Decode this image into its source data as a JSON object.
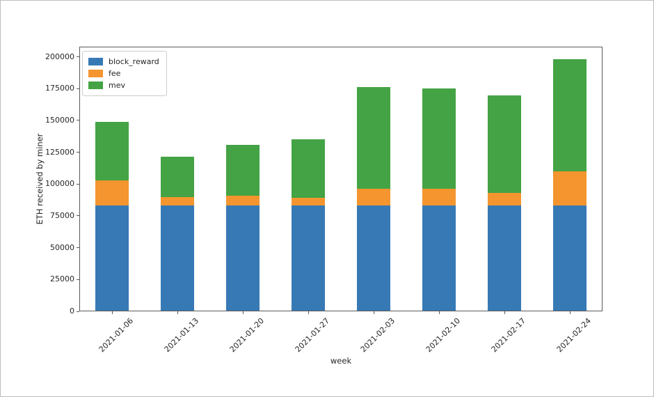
{
  "figure": {
    "background": "#ffffff",
    "frame_border": "#bdbdbd",
    "spine_color": "#5a5a5a",
    "text_color": "#262626"
  },
  "chart_data": {
    "type": "bar",
    "stacked": true,
    "title": "",
    "xlabel": "week",
    "ylabel": "ETH received by miner",
    "categories": [
      "2021-01-06",
      "2021-01-13",
      "2021-01-20",
      "2021-01-27",
      "2021-02-03",
      "2021-02-10",
      "2021-02-17",
      "2021-02-24"
    ],
    "series": [
      {
        "name": "block_reward",
        "color": "#3779b5",
        "values": [
          83300,
          83300,
          83300,
          83300,
          83300,
          83300,
          83300,
          83300
        ]
      },
      {
        "name": "fee",
        "color": "#f5952f",
        "values": [
          19700,
          6200,
          7700,
          6100,
          13100,
          13200,
          9700,
          26900
        ]
      },
      {
        "name": "mev",
        "color": "#44a344",
        "values": [
          46000,
          31800,
          40000,
          45600,
          79800,
          78700,
          76700,
          88100
        ]
      }
    ],
    "stack_totals": [
      149000,
      121300,
      131000,
      135000,
      176200,
      175200,
      169700,
      198300
    ],
    "ylim": [
      0,
      208000
    ],
    "yticks": [
      0,
      25000,
      50000,
      75000,
      100000,
      125000,
      150000,
      175000,
      200000
    ],
    "xtick_rotation_deg": 45,
    "grid": false,
    "legend_position": "upper left"
  }
}
